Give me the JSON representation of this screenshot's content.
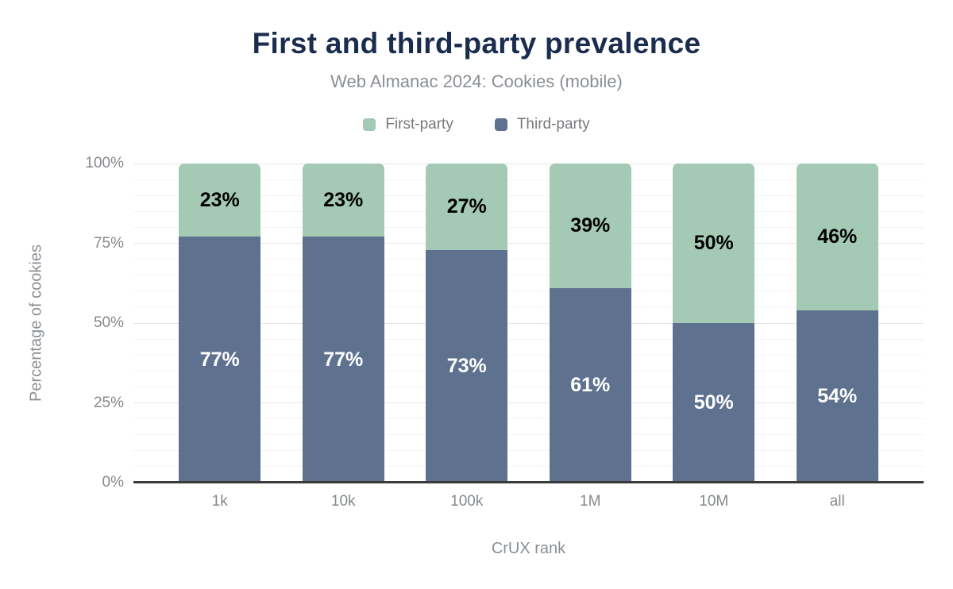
{
  "title": "First and third-party prevalence",
  "subtitle": "Web Almanac 2024: Cookies (mobile)",
  "colors": {
    "title_navy": "#1b2d4f",
    "first_party_green": "#a4c9b4",
    "third_party_blue": "#5e7290",
    "axis_text_gray": "#8a8f94",
    "axis_line_dark": "#3a3a3a",
    "gridline_major": "#e5e5e5",
    "gridline_minor": "#f4f4f4",
    "background": "#ffffff"
  },
  "chart_data": {
    "type": "bar",
    "stacked": true,
    "title": "First and third-party prevalence",
    "subtitle": "Web Almanac 2024: Cookies (mobile)",
    "categories": [
      "1k",
      "10k",
      "100k",
      "1M",
      "10M",
      "all"
    ],
    "series": [
      {
        "name": "First-party",
        "color": "#a4c9b4",
        "label_color": "#000000",
        "values": [
          23,
          23,
          27,
          39,
          50,
          46
        ]
      },
      {
        "name": "Third-party",
        "color": "#5e7290",
        "label_color": "#ffffff",
        "values": [
          77,
          77,
          73,
          61,
          50,
          54
        ]
      }
    ],
    "data_label_format": "percent",
    "xlabel": "CrUX rank",
    "ylabel": "Percentage of cookies",
    "ylim": [
      0,
      100
    ],
    "yticks": [
      {
        "label": "0%",
        "value": 0
      },
      {
        "label": "25%",
        "value": 25
      },
      {
        "label": "50%",
        "value": 50
      },
      {
        "label": "75%",
        "value": 75
      },
      {
        "label": "100%",
        "value": 100
      }
    ],
    "grid": {
      "minor_step": 5,
      "major_step": 25,
      "visible": true
    },
    "legend_position": "top"
  }
}
